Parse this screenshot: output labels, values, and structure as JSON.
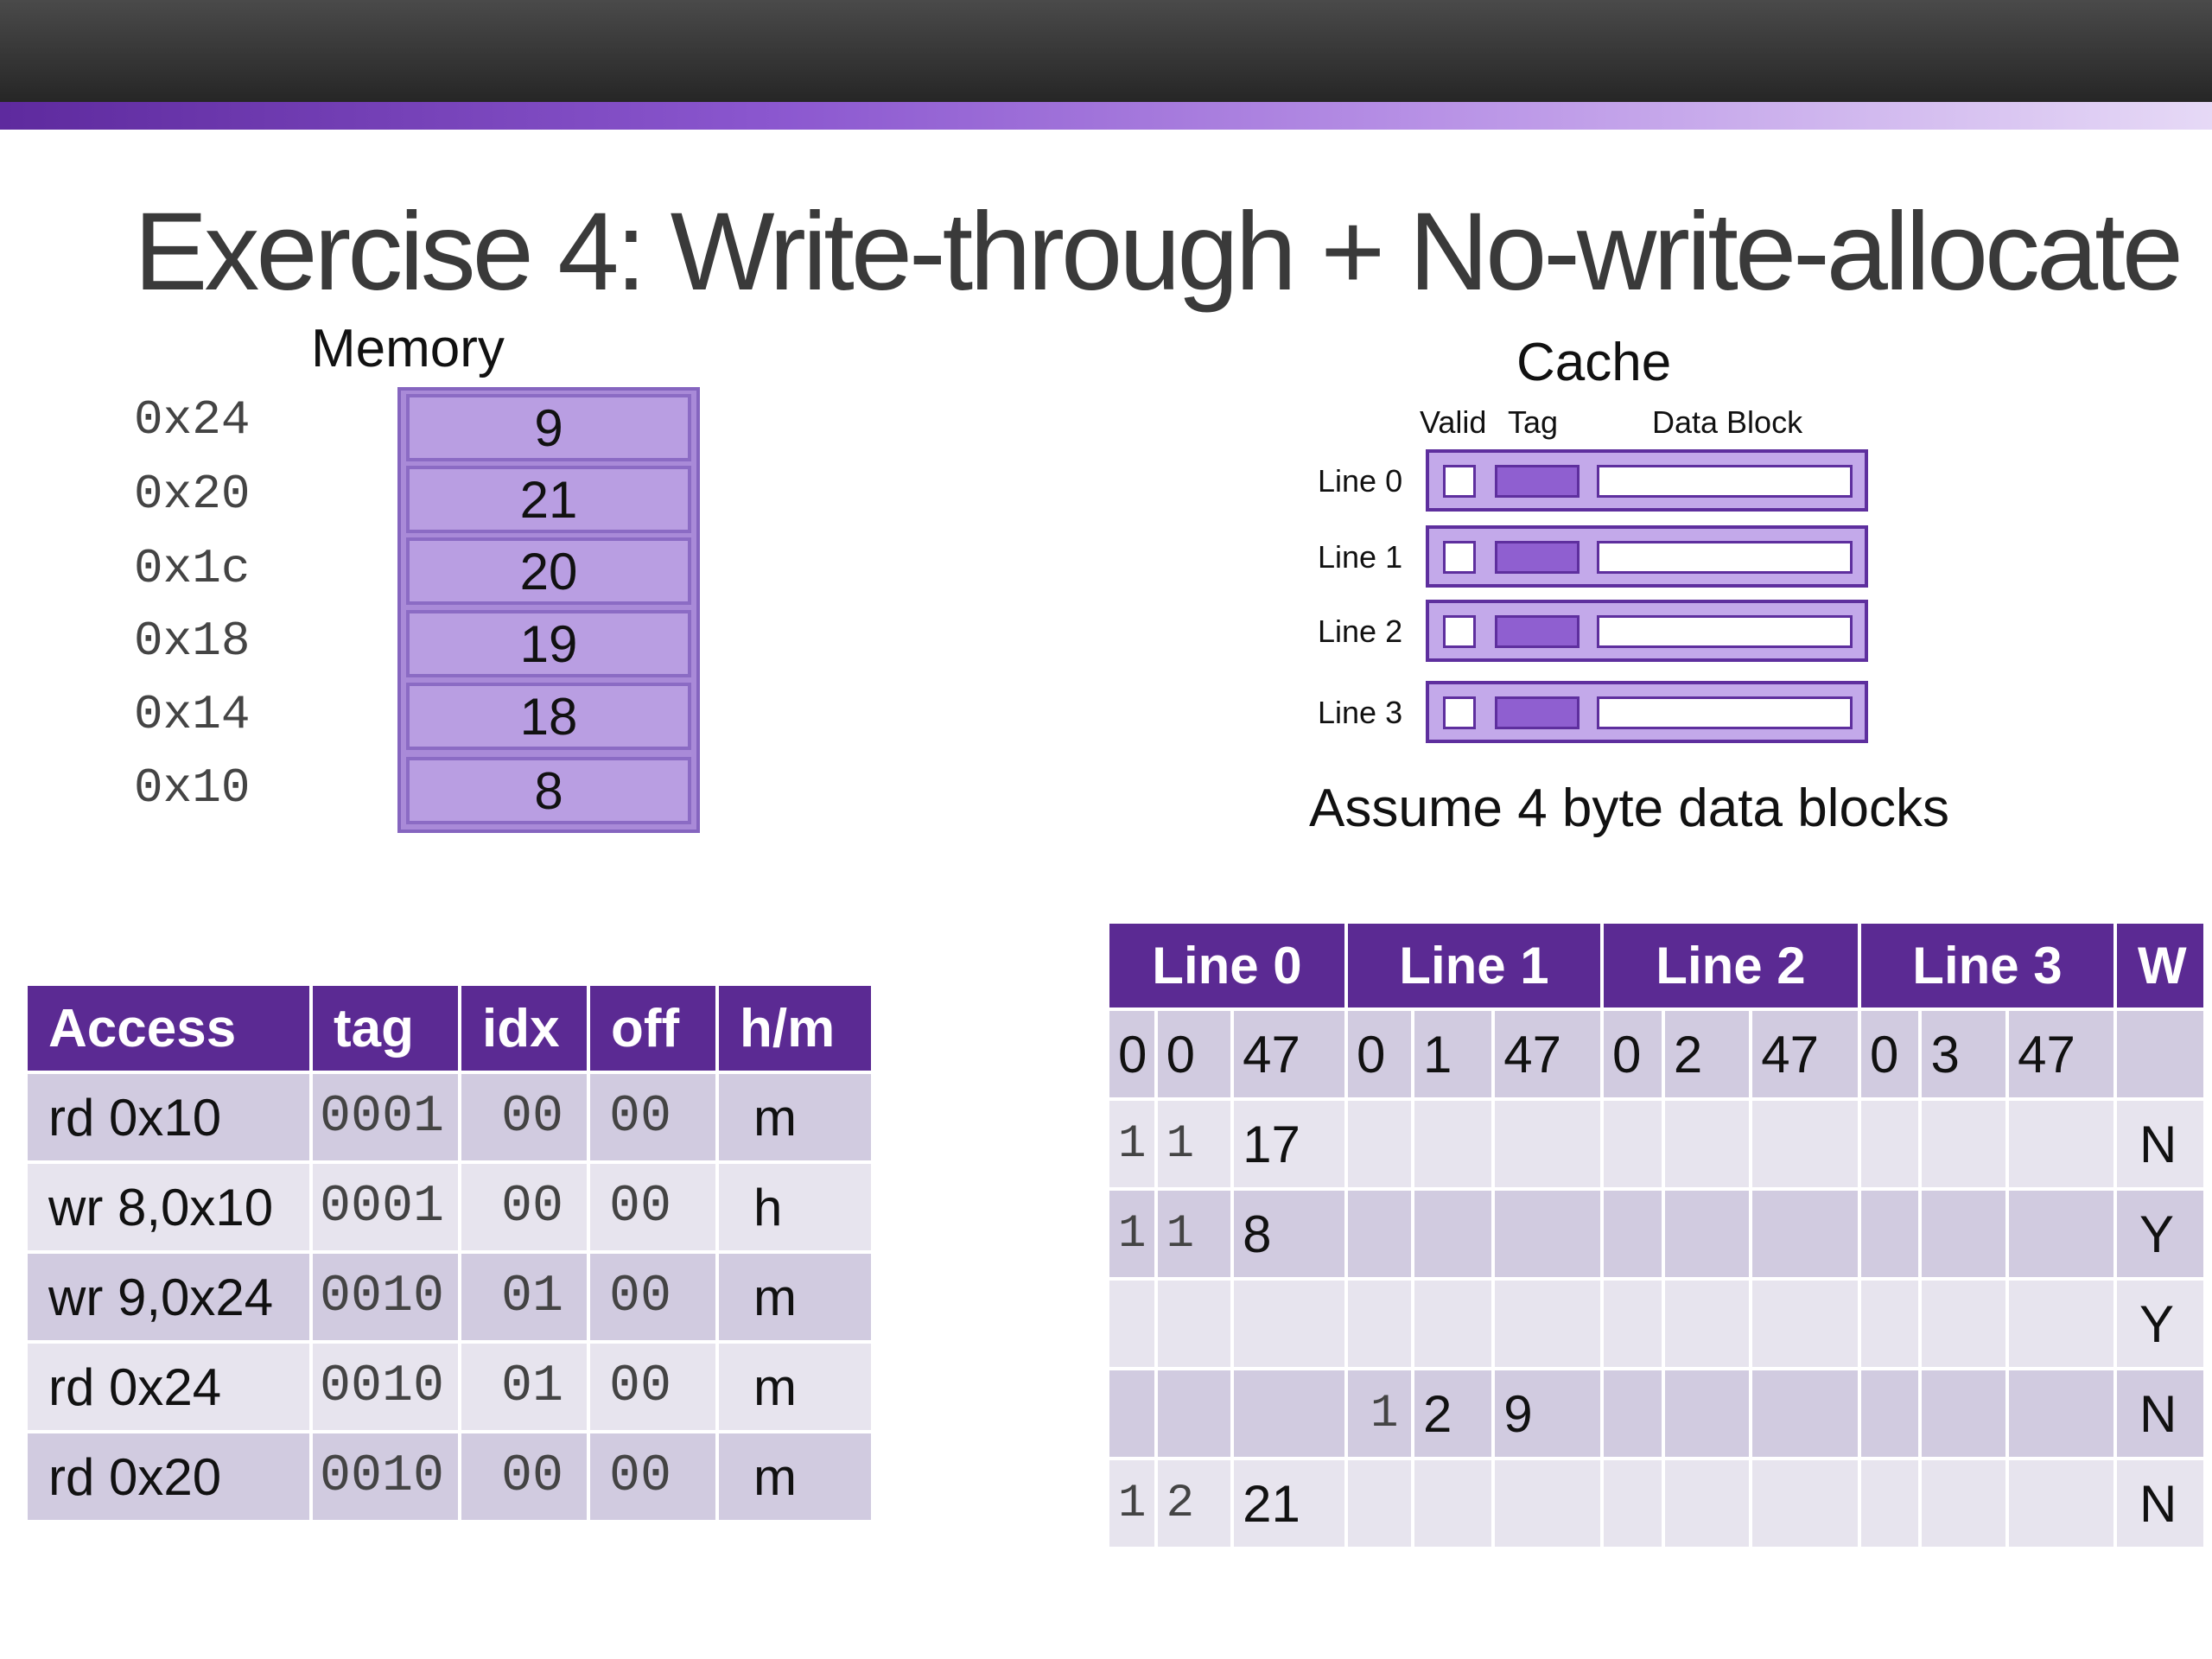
{
  "title": "Exercise 4: Write-through + No-write-allocate",
  "memory": {
    "title": "Memory",
    "rows": [
      {
        "addr": "0x24",
        "value": "9"
      },
      {
        "addr": "0x20",
        "value": "21"
      },
      {
        "addr": "0x1c",
        "value": "20"
      },
      {
        "addr": "0x18",
        "value": "19"
      },
      {
        "addr": "0x14",
        "value": "18"
      },
      {
        "addr": "0x10",
        "value": "8"
      }
    ]
  },
  "cache": {
    "title": "Cache",
    "header_valid": "Valid",
    "header_tag": "Tag",
    "header_data": "Data Block",
    "lines": [
      "Line 0",
      "Line 1",
      "Line 2",
      "Line 3"
    ],
    "note": "Assume 4 byte data blocks"
  },
  "access_table": {
    "headers": [
      "Access",
      "tag",
      "idx",
      "off",
      "h/m"
    ],
    "rows": [
      [
        "rd 0x10",
        "0001",
        "00",
        "00",
        "m"
      ],
      [
        "wr 8,0x10",
        "0001",
        "00",
        "00",
        "h"
      ],
      [
        "wr 9,0x24",
        "0010",
        "01",
        "00",
        "m"
      ],
      [
        "rd 0x24",
        "0010",
        "01",
        "00",
        "m"
      ],
      [
        "rd 0x20",
        "0010",
        "00",
        "00",
        "m"
      ]
    ]
  },
  "cache_table": {
    "headers": [
      "Line 0",
      "Line 1",
      "Line 2",
      "Line 3",
      "W"
    ],
    "rows": [
      [
        "0",
        "0",
        "47",
        "0",
        "1",
        "47",
        "0",
        "2",
        "47",
        "0",
        "3",
        "47",
        ""
      ],
      [
        "1",
        "1",
        "17",
        "",
        "",
        "",
        "",
        "",
        "",
        "",
        "",
        "",
        "N"
      ],
      [
        "1",
        "1",
        "8",
        "",
        "",
        "",
        "",
        "",
        "",
        "",
        "",
        "",
        "Y"
      ],
      [
        "",
        "",
        "",
        "",
        "",
        "",
        "",
        "",
        "",
        "",
        "",
        "",
        "Y"
      ],
      [
        "",
        "",
        "",
        "1",
        "2",
        "9",
        "",
        "",
        "",
        "",
        "",
        "",
        "N"
      ],
      [
        "1",
        "2",
        "21",
        "",
        "",
        "",
        "",
        "",
        "",
        "",
        "",
        "",
        "N"
      ]
    ]
  }
}
